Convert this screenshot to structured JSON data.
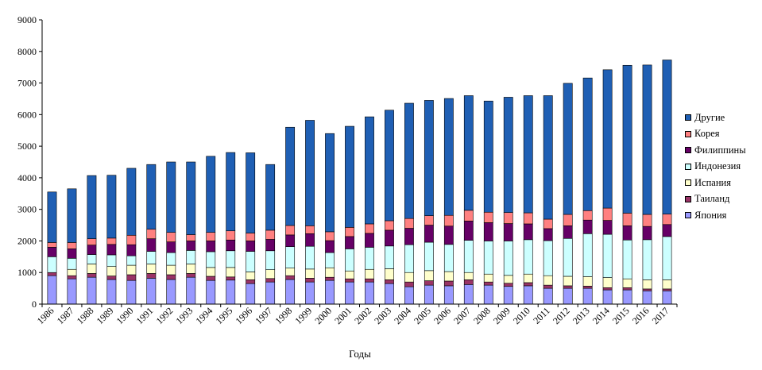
{
  "chart_data": {
    "type": "bar",
    "stacked": true,
    "xlabel": "Годы",
    "ylabel": "",
    "ylim": [
      0,
      9000
    ],
    "yticks": [
      0,
      1000,
      2000,
      3000,
      4000,
      5000,
      6000,
      7000,
      8000,
      9000
    ],
    "grid": false,
    "legend_position": "right",
    "categories": [
      "1986",
      "1987",
      "1988",
      "1989",
      "1990",
      "1991",
      "1992",
      "1993",
      "1994",
      "1995",
      "1996",
      "1997",
      "1998",
      "1999",
      "2000",
      "2001",
      "2002",
      "2003",
      "2004",
      "2005",
      "2006",
      "2007",
      "2008",
      "2009",
      "2010",
      "2011",
      "2012",
      "2013",
      "2014",
      "2015",
      "2016",
      "2017"
    ],
    "series": [
      {
        "name": "Япония",
        "color": "#9999ff",
        "values": [
          900,
          800,
          850,
          780,
          750,
          820,
          780,
          850,
          750,
          760,
          650,
          700,
          780,
          700,
          750,
          700,
          700,
          650,
          550,
          600,
          580,
          620,
          600,
          560,
          580,
          500,
          500,
          500,
          450,
          450,
          420,
          420
        ]
      },
      {
        "name": "Таиланд",
        "color": "#993366",
        "values": [
          100,
          100,
          120,
          110,
          180,
          150,
          150,
          120,
          130,
          100,
          120,
          110,
          120,
          120,
          100,
          100,
          100,
          120,
          150,
          140,
          150,
          150,
          100,
          100,
          100,
          100,
          80,
          70,
          70,
          70,
          60,
          60
        ]
      },
      {
        "name": "Испания",
        "color": "#ffffcc",
        "values": [
          0,
          200,
          300,
          300,
          300,
          300,
          300,
          300,
          280,
          300,
          250,
          280,
          240,
          290,
          300,
          250,
          300,
          350,
          300,
          320,
          300,
          230,
          250,
          250,
          270,
          300,
          300,
          300,
          320,
          280,
          290,
          290
        ]
      },
      {
        "name": "Индонезия",
        "color": "#ccffff",
        "values": [
          500,
          350,
          300,
          370,
          300,
          400,
          400,
          430,
          500,
          530,
          650,
          600,
          680,
          720,
          480,
          700,
          700,
          720,
          880,
          900,
          860,
          1020,
          1050,
          1090,
          1090,
          1110,
          1200,
          1360,
          1370,
          1230,
          1270,
          1370
        ]
      },
      {
        "name": "Филиппины",
        "color": "#660066",
        "values": [
          300,
          300,
          300,
          330,
          350,
          400,
          340,
          300,
          340,
          340,
          330,
          360,
          370,
          400,
          380,
          390,
          440,
          500,
          520,
          540,
          580,
          610,
          580,
          550,
          500,
          380,
          400,
          430,
          440,
          450,
          420,
          380
        ]
      },
      {
        "name": "Корея",
        "color": "#ff8080",
        "values": [
          150,
          200,
          200,
          200,
          300,
          300,
          300,
          200,
          270,
          290,
          250,
          290,
          300,
          250,
          280,
          290,
          300,
          300,
          310,
          300,
          340,
          340,
          330,
          350,
          350,
          300,
          360,
          300,
          390,
          400,
          380,
          330
        ]
      },
      {
        "name": "Другие",
        "color": "#1f5fb4",
        "values": [
          1600,
          1700,
          2000,
          1990,
          2120,
          2050,
          2230,
          2300,
          2410,
          2480,
          2540,
          2080,
          3110,
          3340,
          3110,
          3200,
          3390,
          3500,
          3650,
          3650,
          3700,
          3630,
          3520,
          3650,
          3710,
          3910,
          4150,
          4200,
          4380,
          4680,
          4730,
          4880
        ]
      }
    ]
  },
  "legend": [
    "Другие",
    "Корея",
    "Филиппины",
    "Индонезия",
    "Испания",
    "Таиланд",
    "Япония"
  ]
}
